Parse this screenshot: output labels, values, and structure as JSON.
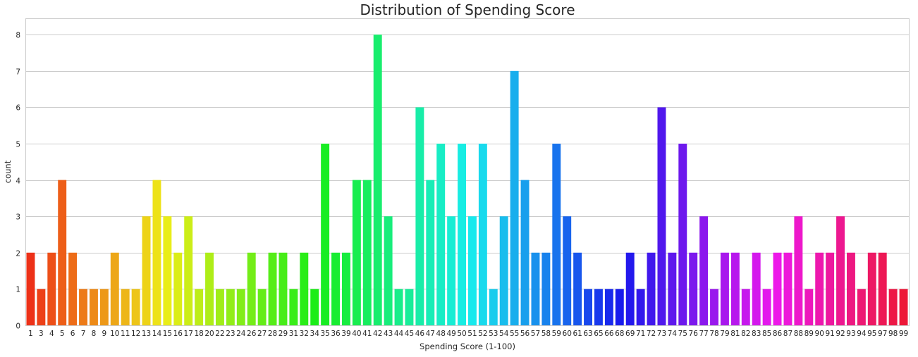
{
  "chart_data": {
    "type": "bar",
    "title": "Distribution of Spending Score",
    "xlabel": "Spending Score (1-100)",
    "ylabel": "count",
    "ylim": [
      0,
      8.45
    ],
    "yticks": [
      "0",
      "1",
      "2",
      "3",
      "4",
      "5",
      "6",
      "7",
      "8"
    ],
    "grid": true,
    "palette": "hsv",
    "categories": [
      "1",
      "3",
      "4",
      "5",
      "6",
      "7",
      "8",
      "9",
      "10",
      "11",
      "12",
      "13",
      "14",
      "15",
      "16",
      "17",
      "18",
      "20",
      "22",
      "23",
      "24",
      "26",
      "27",
      "28",
      "29",
      "31",
      "32",
      "34",
      "35",
      "36",
      "39",
      "40",
      "41",
      "42",
      "43",
      "44",
      "45",
      "46",
      "47",
      "48",
      "49",
      "50",
      "51",
      "52",
      "53",
      "54",
      "55",
      "56",
      "57",
      "58",
      "59",
      "60",
      "61",
      "63",
      "65",
      "66",
      "68",
      "69",
      "71",
      "72",
      "73",
      "74",
      "75",
      "76",
      "77",
      "78",
      "79",
      "81",
      "82",
      "83",
      "85",
      "86",
      "87",
      "88",
      "89",
      "90",
      "91",
      "92",
      "93",
      "94",
      "95",
      "97",
      "98",
      "99"
    ],
    "values": [
      2,
      1,
      2,
      4,
      2,
      1,
      1,
      1,
      2,
      1,
      1,
      3,
      4,
      3,
      2,
      3,
      1,
      2,
      1,
      1,
      1,
      2,
      1,
      2,
      2,
      1,
      2,
      1,
      5,
      2,
      2,
      4,
      4,
      8,
      3,
      1,
      1,
      6,
      4,
      5,
      3,
      5,
      3,
      5,
      1,
      3,
      7,
      4,
      2,
      2,
      5,
      3,
      2,
      1,
      1,
      1,
      1,
      2,
      1,
      2,
      6,
      2,
      5,
      2,
      3,
      1,
      2,
      2,
      1,
      2,
      1,
      2,
      2,
      3,
      1,
      2,
      2,
      3,
      2,
      1,
      2,
      2,
      1,
      1
    ]
  }
}
